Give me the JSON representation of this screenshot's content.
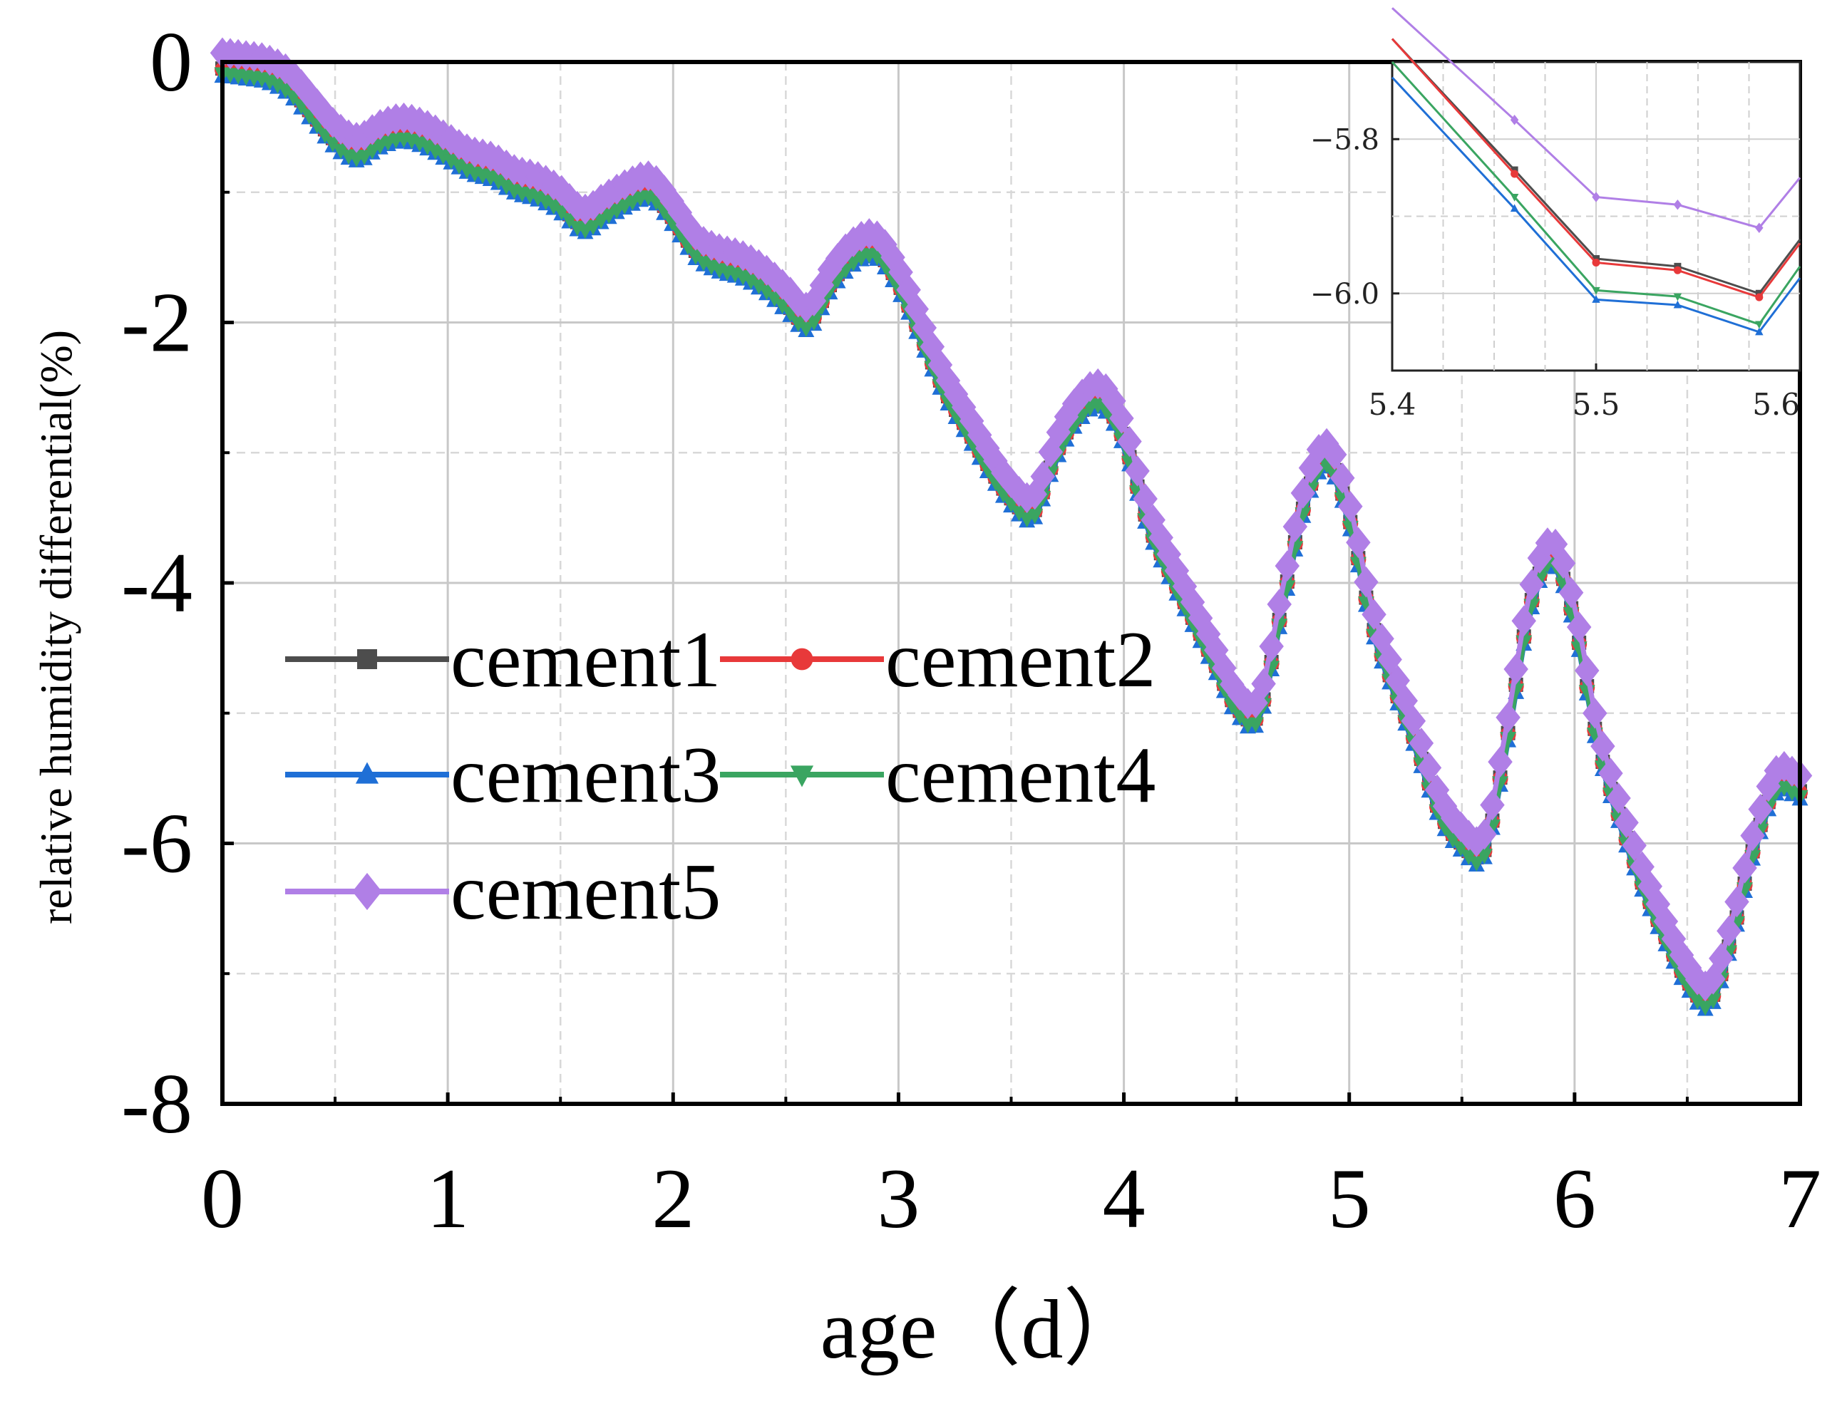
{
  "chart_data": {
    "type": "line",
    "title": "",
    "xlabel": "age（d）",
    "ylabel": "relative humidity differential(%)",
    "xlim": [
      0,
      7
    ],
    "ylim": [
      -8,
      0
    ],
    "x_ticks": [
      0,
      1,
      2,
      3,
      4,
      5,
      6,
      7
    ],
    "x_tick_labels": [
      "0",
      "1",
      "2",
      "3",
      "4",
      "5",
      "6",
      "7"
    ],
    "y_ticks": [
      0,
      -2,
      -4,
      -6,
      -8
    ],
    "y_tick_labels": [
      "0",
      "-2",
      "-4",
      "-6",
      "-8"
    ],
    "grid": true,
    "legend_position": "center-left",
    "series_base": {
      "x": [
        0,
        0.1,
        0.2,
        0.3,
        0.4,
        0.5,
        0.6,
        0.7,
        0.8,
        0.9,
        1.0,
        1.1,
        1.2,
        1.3,
        1.4,
        1.5,
        1.6,
        1.7,
        1.8,
        1.9,
        2.0,
        2.1,
        2.2,
        2.3,
        2.4,
        2.5,
        2.6,
        2.7,
        2.8,
        2.9,
        3.0,
        3.1,
        3.2,
        3.3,
        3.4,
        3.5,
        3.6,
        3.7,
        3.8,
        3.9,
        4.0,
        4.1,
        4.2,
        4.3,
        4.4,
        4.5,
        4.6,
        4.7,
        4.8,
        4.9,
        5.0,
        5.1,
        5.2,
        5.3,
        5.4,
        5.5,
        5.6,
        5.7,
        5.8,
        5.9,
        6.0,
        6.1,
        6.2,
        6.3,
        6.4,
        6.5,
        6.6,
        6.7,
        6.8,
        6.9,
        7.0
      ],
      "y": [
        -0.05,
        -0.07,
        -0.1,
        -0.2,
        -0.4,
        -0.6,
        -0.7,
        -0.6,
        -0.55,
        -0.6,
        -0.7,
        -0.8,
        -0.85,
        -0.95,
        -1.0,
        -1.1,
        -1.25,
        -1.15,
        -1.05,
        -1.0,
        -1.2,
        -1.45,
        -1.55,
        -1.6,
        -1.7,
        -1.85,
        -2.0,
        -1.7,
        -1.5,
        -1.45,
        -1.7,
        -2.1,
        -2.5,
        -2.8,
        -3.1,
        -3.35,
        -3.45,
        -3.0,
        -2.7,
        -2.6,
        -2.9,
        -3.5,
        -3.9,
        -4.25,
        -4.6,
        -4.95,
        -5.0,
        -4.2,
        -3.4,
        -3.05,
        -3.5,
        -4.3,
        -4.8,
        -5.25,
        -5.75,
        -6.0,
        -6.05,
        -5.2,
        -4.2,
        -3.8,
        -4.3,
        -5.2,
        -5.8,
        -6.3,
        -6.7,
        -7.05,
        -7.2,
        -6.7,
        -6.0,
        -5.55,
        -5.6
      ]
    },
    "series": [
      {
        "name": "cement1",
        "color": "#4d4d4d",
        "marker": "square",
        "offset": 0.0
      },
      {
        "name": "cement2",
        "color": "#e8393a",
        "marker": "circle",
        "offset": -0.01
      },
      {
        "name": "cement3",
        "color": "#1f6fd6",
        "marker": "triangle-up",
        "offset": -0.06
      },
      {
        "name": "cement4",
        "color": "#3aa561",
        "marker": "triangle-down",
        "offset": -0.04
      },
      {
        "name": "cement5",
        "color": "#b07fe6",
        "marker": "diamond",
        "offset": 0.12
      }
    ],
    "inset": {
      "xlim": [
        5.4,
        5.6
      ],
      "ylim": [
        -6.1,
        -5.7
      ],
      "x_ticks": [
        5.4,
        5.5,
        5.6
      ],
      "x_tick_labels": [
        "5.4",
        "5.5",
        "5.6"
      ],
      "y_ticks": [
        -5.8,
        -6.0
      ],
      "y_tick_labels": [
        "−5.8",
        "−6.0"
      ],
      "x": [
        5.4,
        5.46,
        5.5,
        5.54,
        5.58,
        5.6
      ],
      "series": [
        {
          "name": "cement1",
          "y": [
            -5.67,
            -5.84,
            -5.955,
            -5.965,
            -6.0,
            -5.93
          ]
        },
        {
          "name": "cement2",
          "y": [
            -5.67,
            -5.845,
            -5.96,
            -5.97,
            -6.005,
            -5.935
          ]
        },
        {
          "name": "cement3",
          "y": [
            -5.72,
            -5.89,
            -6.008,
            -6.015,
            -6.05,
            -5.98
          ]
        },
        {
          "name": "cement4",
          "y": [
            -5.7,
            -5.875,
            -5.996,
            -6.004,
            -6.04,
            -5.965
          ]
        },
        {
          "name": "cement5",
          "y": [
            -5.63,
            -5.775,
            -5.875,
            -5.885,
            -5.915,
            -5.85
          ]
        }
      ]
    }
  }
}
